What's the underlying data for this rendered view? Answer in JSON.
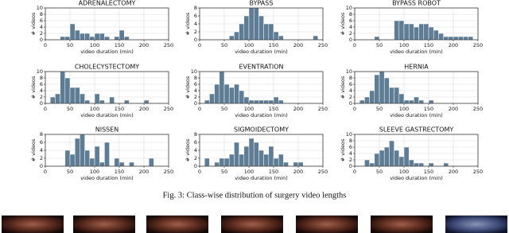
{
  "caption": "Fig. 3: Class-wise distribution of surgery video lengths",
  "chart_data": [
    {
      "type": "histogram",
      "title": "ADRENALECTOMY",
      "xlabel": "video duration (min)",
      "ylabel": "# videos",
      "color": "#5f7c95",
      "grid": true,
      "bins": [
        30,
        40,
        50,
        60,
        70,
        80,
        90,
        100,
        110,
        120,
        130,
        140,
        150,
        160,
        170
      ],
      "values": [
        1,
        1,
        5,
        3,
        2,
        2,
        1,
        2,
        2,
        1,
        0,
        1,
        3,
        1
      ],
      "xlim": [
        0,
        250
      ],
      "xticks": [
        0,
        50,
        100,
        150,
        200,
        250
      ],
      "ylim": [
        0,
        10
      ],
      "yticks": [
        0,
        2,
        4,
        6,
        8,
        10
      ]
    },
    {
      "type": "histogram",
      "title": "BYPASS",
      "xlabel": "video duration (min)",
      "ylabel": "# videos",
      "color": "#5f7c95",
      "grid": true,
      "bins": [
        60,
        70,
        80,
        90,
        100,
        110,
        120,
        130,
        140,
        150,
        160,
        170,
        180,
        190,
        200,
        210,
        220,
        230,
        240
      ],
      "values": [
        1,
        2,
        4,
        6,
        8,
        8,
        6,
        4,
        4,
        2,
        1,
        0,
        0,
        0,
        0,
        0,
        0,
        1
      ],
      "xlim": [
        0,
        250
      ],
      "xticks": [
        0,
        50,
        100,
        150,
        200,
        250
      ],
      "ylim": [
        0,
        8
      ],
      "yticks": [
        0,
        2,
        4,
        6,
        8
      ]
    },
    {
      "type": "histogram",
      "title": "BYPASS ROBOT",
      "xlabel": "video duration (min)",
      "ylabel": "# videos",
      "color": "#5f7c95",
      "grid": true,
      "bins": [
        40,
        50,
        60,
        70,
        80,
        90,
        100,
        110,
        120,
        130,
        140,
        150,
        160,
        170,
        180,
        190,
        200,
        210,
        220,
        230,
        240
      ],
      "values": [
        1,
        0,
        0,
        0,
        6,
        6,
        5,
        5,
        4,
        5,
        5,
        4,
        3,
        2,
        1,
        1,
        1,
        1,
        1,
        1
      ],
      "xlim": [
        0,
        250
      ],
      "xticks": [
        0,
        50,
        100,
        150,
        200,
        250
      ],
      "ylim": [
        0,
        10
      ],
      "yticks": [
        0,
        2,
        4,
        6,
        8,
        10
      ]
    },
    {
      "type": "histogram",
      "title": "CHOLECYSTECTOMY",
      "xlabel": "video duration (min)",
      "ylabel": "# videos",
      "color": "#5f7c95",
      "grid": true,
      "bins": [
        10,
        20,
        30,
        40,
        50,
        60,
        70,
        80,
        90,
        100,
        110,
        120,
        130,
        140,
        150,
        160,
        170,
        180,
        190,
        200,
        210
      ],
      "values": [
        2,
        3,
        10,
        8,
        5,
        5,
        3,
        1,
        0,
        3,
        1,
        0,
        2,
        0,
        0,
        1,
        0,
        0,
        0,
        1
      ],
      "xlim": [
        0,
        250
      ],
      "xticks": [
        0,
        50,
        100,
        150,
        200,
        250
      ],
      "ylim": [
        0,
        10
      ],
      "yticks": [
        0,
        2,
        4,
        6,
        8,
        10
      ]
    },
    {
      "type": "histogram",
      "title": "EVENTRATION",
      "xlabel": "video duration (min)",
      "ylabel": "# videos",
      "color": "#5f7c95",
      "grid": true,
      "bins": [
        10,
        20,
        30,
        40,
        50,
        60,
        70,
        80,
        90,
        100,
        110,
        120,
        130,
        140,
        150,
        160,
        170
      ],
      "values": [
        1,
        3,
        6,
        10,
        6,
        5,
        6,
        4,
        2,
        1,
        1,
        1,
        1,
        1,
        2,
        1
      ],
      "xlim": [
        0,
        250
      ],
      "xticks": [
        0,
        50,
        100,
        150,
        200,
        250
      ],
      "ylim": [
        0,
        10
      ],
      "yticks": [
        0,
        2,
        4,
        6,
        8,
        10
      ]
    },
    {
      "type": "histogram",
      "title": "HERNIA",
      "xlabel": "video duration (min)",
      "ylabel": "# videos",
      "color": "#5f7c95",
      "grid": true,
      "bins": [
        10,
        20,
        30,
        40,
        50,
        60,
        70,
        80,
        90,
        100,
        110,
        120,
        130,
        140,
        150,
        160
      ],
      "values": [
        1,
        2,
        4,
        9,
        10,
        8,
        5,
        5,
        3,
        1,
        1,
        2,
        1,
        0,
        1
      ],
      "xlim": [
        0,
        250
      ],
      "xticks": [
        0,
        50,
        100,
        150,
        200,
        250
      ],
      "ylim": [
        0,
        10
      ],
      "yticks": [
        0,
        2,
        4,
        6,
        8,
        10
      ]
    },
    {
      "type": "histogram",
      "title": "NISSEN",
      "xlabel": "video duration (min)",
      "ylabel": "# videos",
      "color": "#5f7c95",
      "grid": true,
      "bins": [
        40,
        50,
        60,
        70,
        80,
        90,
        100,
        110,
        120,
        130,
        140,
        150,
        160,
        170,
        180,
        190,
        200,
        210,
        220
      ],
      "values": [
        4,
        3,
        7,
        8,
        4,
        2,
        5,
        1,
        6,
        0,
        2,
        1,
        0,
        1,
        0,
        0,
        0,
        2
      ],
      "xlim": [
        0,
        250
      ],
      "xticks": [
        0,
        50,
        100,
        150,
        200,
        250
      ],
      "ylim": [
        0,
        8
      ],
      "yticks": [
        0,
        2,
        4,
        6,
        8
      ]
    },
    {
      "type": "histogram",
      "title": "SIGMOIDECTOMY",
      "xlabel": "video duration (min)",
      "ylabel": "# videos",
      "color": "#5f7c95",
      "grid": true,
      "bins": [
        10,
        20,
        30,
        40,
        50,
        60,
        70,
        80,
        90,
        100,
        110,
        120,
        130,
        140,
        150,
        160,
        170,
        180,
        190,
        200,
        210
      ],
      "values": [
        2,
        0,
        1,
        2,
        2,
        3,
        6,
        3,
        5,
        7,
        6,
        4,
        3,
        5,
        2,
        3,
        1,
        0,
        1,
        1
      ],
      "xlim": [
        0,
        250
      ],
      "xticks": [
        0,
        50,
        100,
        150,
        200,
        250
      ],
      "ylim": [
        0,
        8
      ],
      "yticks": [
        0,
        2,
        4,
        6,
        8
      ]
    },
    {
      "type": "histogram",
      "title": "SLEEVE GASTRECTOMY",
      "xlabel": "video duration (min)",
      "ylabel": "# videos",
      "color": "#5f7c95",
      "grid": true,
      "bins": [
        20,
        30,
        40,
        50,
        60,
        70,
        80,
        90,
        100,
        110,
        120,
        130,
        140,
        150,
        160,
        170,
        180,
        190
      ],
      "values": [
        2,
        1,
        4,
        5,
        6,
        8,
        5,
        3,
        6,
        2,
        1,
        1,
        0,
        1,
        0,
        0,
        1
      ],
      "xlim": [
        0,
        250
      ],
      "xticks": [
        0,
        50,
        100,
        150,
        200,
        250
      ],
      "ylim": [
        0,
        10
      ],
      "yticks": [
        0,
        2,
        4,
        6,
        8,
        10
      ]
    }
  ]
}
